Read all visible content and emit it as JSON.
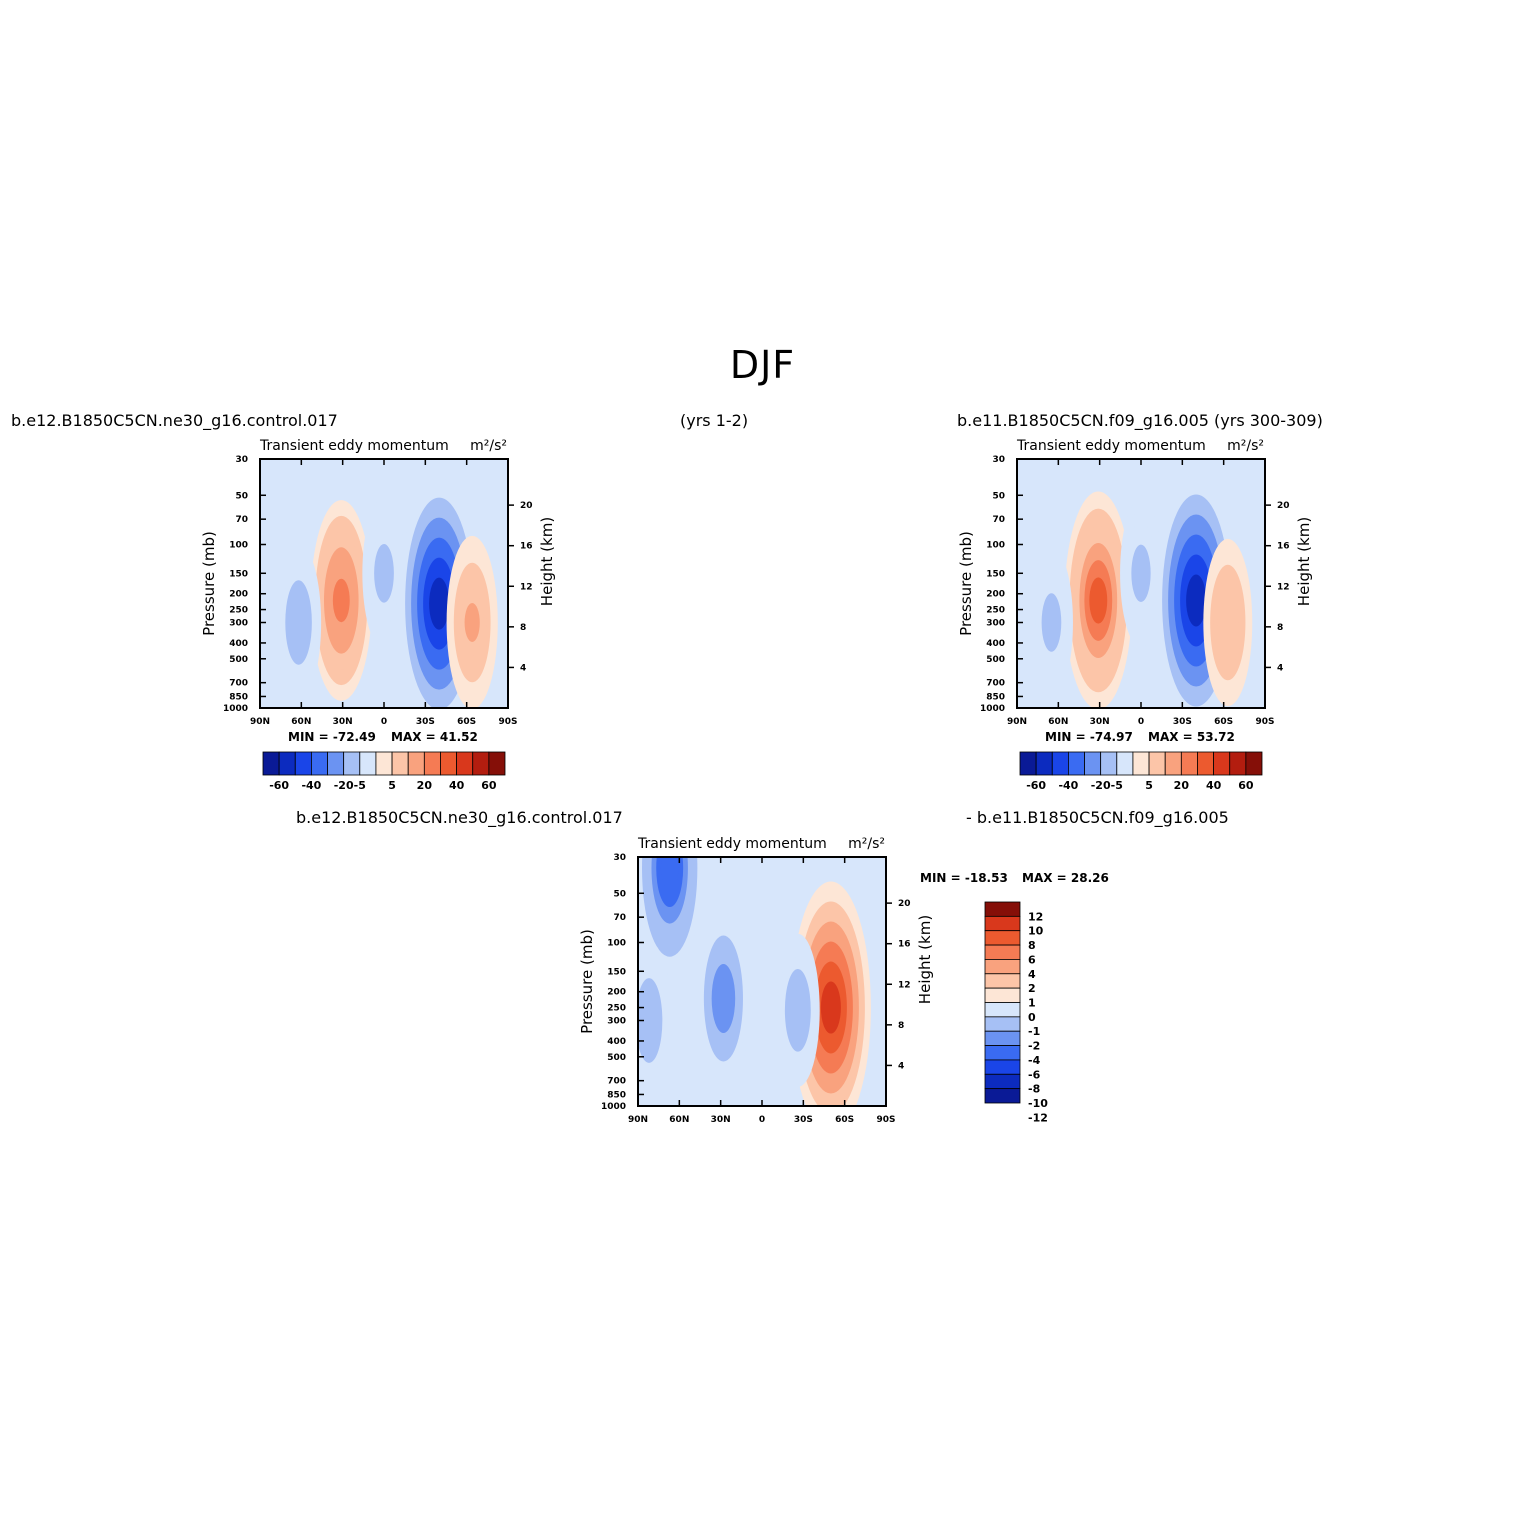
{
  "title": "DJF",
  "case1": "b.e12.B1850C5CN.ne30_g16.control.017",
  "case1_years": "(yrs 1-2)",
  "case2": "b.e11.B1850C5CN.f09_g16.005 (yrs 300-309)",
  "diff_case1": "b.e12.B1850C5CN.ne30_g16.control.017",
  "diff_case2": "- b.e11.B1850C5CN.f09_g16.005",
  "colors": {
    "main_levels": [
      "#0a1a96",
      "#0c2bbf",
      "#1a45e8",
      "#3a6bf2",
      "#6b93f2",
      "#a6c0f5",
      "#d7e6fb",
      "#fde6d6",
      "#fcc5a8",
      "#f9a27e",
      "#f57b54",
      "#ec5a2f",
      "#d9381c",
      "#b31d0f",
      "#850f08"
    ],
    "diff_levels": [
      "#0a1a96",
      "#0c2bbf",
      "#1a45e8",
      "#3a6bf2",
      "#6b93f2",
      "#a6c0f5",
      "#d7e6fb",
      "#fde6d6",
      "#fcc5a8",
      "#f9a27e",
      "#f57b54",
      "#ec5a2f",
      "#d9381c",
      "#850f08"
    ]
  },
  "chart_data": [
    {
      "type": "heatmap",
      "title": "Transient eddy momentum",
      "units": "m²/s²",
      "xlabel": "",
      "ylabel": "Pressure (mb)",
      "y2label": "Height (km)",
      "x_ticks": [
        "90N",
        "60N",
        "30N",
        "0",
        "30S",
        "60S",
        "90S"
      ],
      "y_ticks": [
        "30",
        "50",
        "70",
        "100",
        "150",
        "200",
        "250",
        "300",
        "400",
        "500",
        "700",
        "850",
        "1000"
      ],
      "y2_ticks": [
        "20",
        "16",
        "12",
        "8",
        "4"
      ],
      "min_label": "MIN = -72.49",
      "max_label": "MAX = 41.52",
      "colorbar_labels": [
        "-60",
        "-40",
        "-20",
        "-5",
        "5",
        "20",
        "40",
        "60"
      ],
      "features": [
        {
          "lat": -40,
          "p": 230,
          "value": -72.49
        },
        {
          "lat": 31,
          "p": 220,
          "value": 41.52
        },
        {
          "lat": -64,
          "p": 300,
          "value": 25
        },
        {
          "lat": 62,
          "p": 300,
          "value": -15
        },
        {
          "lat": 0,
          "p": 150,
          "value": -12
        }
      ]
    },
    {
      "type": "heatmap",
      "title": "Transient eddy momentum",
      "units": "m²/s²",
      "xlabel": "",
      "ylabel": "Pressure (mb)",
      "y2label": "Height (km)",
      "x_ticks": [
        "90N",
        "60N",
        "30N",
        "0",
        "30S",
        "60S",
        "90S"
      ],
      "y_ticks": [
        "30",
        "50",
        "70",
        "100",
        "150",
        "200",
        "250",
        "300",
        "400",
        "500",
        "700",
        "850",
        "1000"
      ],
      "y2_ticks": [
        "20",
        "16",
        "12",
        "8",
        "4"
      ],
      "min_label": "MIN = -74.97",
      "max_label": "MAX = 53.72",
      "colorbar_labels": [
        "-60",
        "-40",
        "-20",
        "-5",
        "5",
        "20",
        "40",
        "60"
      ],
      "features": [
        {
          "lat": -40,
          "p": 220,
          "value": -74.97
        },
        {
          "lat": 31,
          "p": 220,
          "value": 53.72
        },
        {
          "lat": -63,
          "p": 300,
          "value": 22
        },
        {
          "lat": 65,
          "p": 300,
          "value": -12
        },
        {
          "lat": 0,
          "p": 150,
          "value": -10
        }
      ]
    },
    {
      "type": "heatmap",
      "title": "Transient eddy momentum",
      "units": "m²/s²",
      "xlabel": "",
      "ylabel": "Pressure (mb)",
      "y2label": "Height (km)",
      "x_ticks": [
        "90N",
        "60N",
        "30N",
        "0",
        "30S",
        "60S",
        "90S"
      ],
      "y_ticks": [
        "30",
        "50",
        "70",
        "100",
        "150",
        "200",
        "250",
        "300",
        "400",
        "500",
        "700",
        "850",
        "1000"
      ],
      "y2_ticks": [
        "20",
        "16",
        "12",
        "8",
        "4"
      ],
      "min_label": "MIN = -18.53",
      "max_label": "MAX = 28.26",
      "colorbar_labels": [
        "12",
        "10",
        "8",
        "6",
        "4",
        "2",
        "1",
        "0",
        "-1",
        "-2",
        "-4",
        "-6",
        "-8",
        "-10",
        "-12"
      ],
      "features": [
        {
          "lat": 67,
          "p": 35,
          "value": -18.53
        },
        {
          "lat": 28,
          "p": 220,
          "value": -12
        },
        {
          "lat": -50,
          "p": 250,
          "value": 28.26
        },
        {
          "lat": 82,
          "p": 300,
          "value": -6
        },
        {
          "lat": -26,
          "p": 260,
          "value": -5
        }
      ]
    }
  ]
}
